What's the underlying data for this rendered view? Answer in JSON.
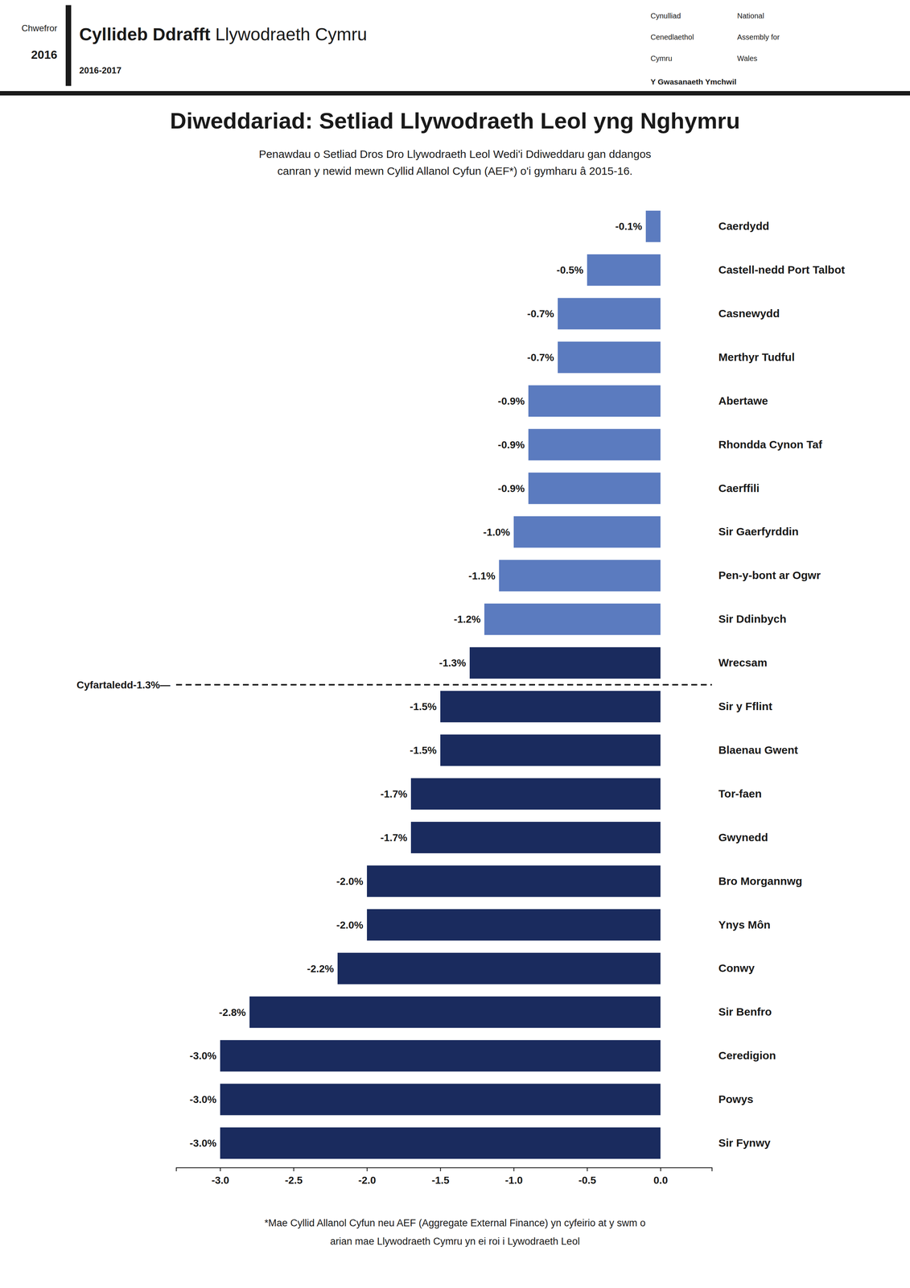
{
  "chart_data": {
    "type": "bar",
    "orientation": "horizontal",
    "title": "Diweddariad: Setliad Llywodraeth Leol yng Nghymru",
    "subtitle": [
      "Penawdau o Setliad Dros Dro Llywodraeth Leol Wedi'i Ddiweddaru gan ddangos",
      "canran y newid mewn Cyllid Allanol Cyfun (AEF*) o'i gymharu â 2015-16."
    ],
    "header": {
      "date": [
        "Chwefror",
        "2016"
      ],
      "title": [
        "Cyllideb Ddrafft",
        " Llywodraeth Cymru"
      ],
      "subtitle": "2016-2017",
      "welsh": [
        "Cynulliad",
        "Cenedlaethol",
        "Cymru"
      ],
      "english": [
        "National",
        "Assembly for",
        "Wales"
      ],
      "service": "Y Gwasanaeth Ymchwil"
    },
    "footer": [
      "*Mae Cyllid Allanol Cyfun neu AEF (Aggregate External Finance) yn cyfeirio at y swm o",
      "arian mae Llywodraeth Cymru yn ei roi i Lywodraeth Leol"
    ],
    "categories": [
      "Caerdydd",
      "Castell-nedd Port Talbot",
      "Casnewydd",
      "Merthyr Tudful",
      "Abertawe",
      "Rhondda Cynon Taf",
      "Caerffili",
      "Sir Gaerfyrddin",
      "Pen-y-bont ar Ogwr",
      "Sir Ddinbych",
      "Wrecsam",
      "Sir y Fflint",
      "Blaenau Gwent",
      "Tor-faen",
      "Gwynedd",
      "Bro Morgannwg",
      "Ynys Môn",
      "Conwy",
      "Sir Benfro",
      "Ceredigion",
      "Powys",
      "Sir Fynwy"
    ],
    "values": [
      -0.1,
      -0.5,
      -0.7,
      -0.7,
      -0.9,
      -0.9,
      -0.9,
      -1.0,
      -1.1,
      -1.2,
      -1.3,
      -1.5,
      -1.5,
      -1.7,
      -1.7,
      -2.0,
      -2.0,
      -2.2,
      -2.8,
      -3.0,
      -3.0,
      -3.0
    ],
    "value_labels": [
      "-0.1%",
      "-0.5%",
      "-0.7%",
      "-0.7%",
      "-0.9%",
      "-0.9%",
      "-0.9%",
      "-1.0%",
      "-1.1%",
      "-1.2%",
      "-1.3%",
      "-1.5%",
      "-1.5%",
      "-1.7%",
      "-1.7%",
      "-2.0%",
      "-2.0%",
      "-2.2%",
      "-2.8%",
      "-3.0%",
      "-3.0%",
      "-3.0%"
    ],
    "data_labels": true,
    "colors": [
      "#5b7bbf",
      "#5b7bbf",
      "#5b7bbf",
      "#5b7bbf",
      "#5b7bbf",
      "#5b7bbf",
      "#5b7bbf",
      "#5b7bbf",
      "#5b7bbf",
      "#5b7bbf",
      "#1a2b5e",
      "#1a2b5e",
      "#1a2b5e",
      "#1a2b5e",
      "#1a2b5e",
      "#1a2b5e",
      "#1a2b5e",
      "#1a2b5e",
      "#1a2b5e",
      "#1a2b5e",
      "#1a2b5e",
      "#1a2b5e"
    ],
    "annotations": [
      {
        "text": "Cyfartaledd-1.3%—",
        "value": -1.3
      }
    ],
    "xlim": [
      -3.3,
      0.35
    ],
    "xticks": [
      {
        "value": -3.0,
        "label": "-3.0"
      },
      -2.5,
      {
        "value": -2.0,
        "label": "-2.0"
      },
      -1.5,
      {
        "value": -1.0,
        "label": "-1.0"
      },
      -0.5,
      {
        "value": 0.0,
        "label": "0.0"
      }
    ],
    "grid": false
  }
}
